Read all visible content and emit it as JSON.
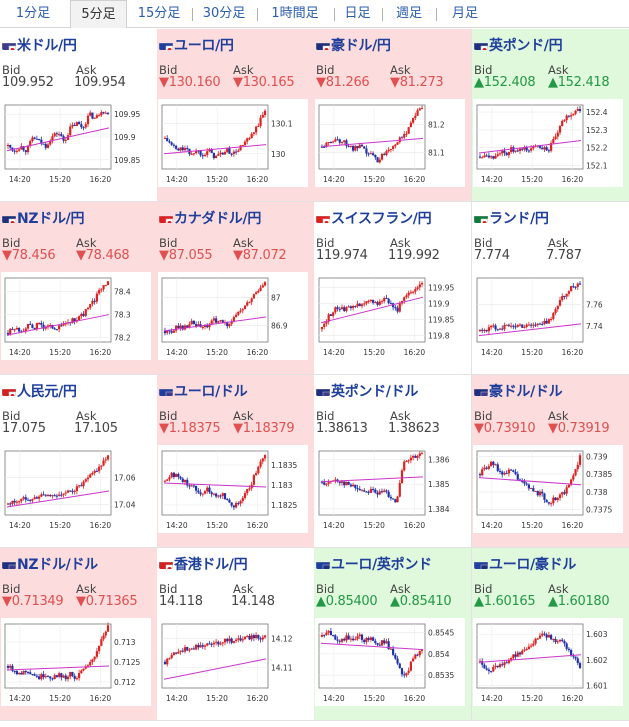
{
  "tabs": [
    {
      "label": "1分足",
      "active": false
    },
    {
      "label": "5分足",
      "active": true
    },
    {
      "label": "15分足",
      "active": false
    },
    {
      "label": "30分足",
      "active": false
    },
    {
      "label": "1時間足",
      "active": false
    },
    {
      "label": "日足",
      "active": false
    },
    {
      "label": "週足",
      "active": false
    },
    {
      "label": "月足",
      "active": false
    }
  ],
  "colors": {
    "down_text": "#e05050",
    "up_text": "#229944",
    "flat_text": "#444444",
    "down_bg": "#fcdcdc",
    "up_bg": "#e0f8dc",
    "candle_up": "#dd2222",
    "candle_down": "#2233aa",
    "moving_average": "#cc33cc",
    "link": "#1e3f9b"
  },
  "x_ticks": [
    "14:20",
    "15:20",
    "16:20"
  ],
  "labels": {
    "bid": "Bid",
    "ask": "Ask"
  },
  "pairs": [
    {
      "name": "米ドル/円",
      "trend": "flat",
      "bid": "109.952",
      "ask": "109.954",
      "flag": "us-jp-flag",
      "chart": {
        "yticks": [
          "109.95",
          "109.9",
          "109.85"
        ],
        "y_range": [
          109.83,
          109.97
        ],
        "ma_start": 109.87,
        "ma_end": 109.92,
        "path": [
          109.88,
          109.87,
          109.88,
          109.87,
          109.9,
          109.89,
          109.88,
          109.9,
          109.91,
          109.89,
          109.92,
          109.93,
          109.92,
          109.95,
          109.94,
          109.96,
          109.95
        ]
      }
    },
    {
      "name": "ユーロ/円",
      "trend": "down",
      "bid": "130.160",
      "ask": "130.165",
      "flag": "eu-jp-flag",
      "chart": {
        "yticks": [
          "130.1",
          "130"
        ],
        "y_range": [
          129.95,
          130.16
        ],
        "ma_start": 130.0,
        "ma_end": 130.03,
        "path": [
          130.05,
          130.03,
          130.01,
          130.02,
          130.0,
          130.01,
          130.0,
          130.01,
          129.99,
          130.0,
          130.01,
          130.0,
          130.02,
          130.04,
          130.06,
          130.1,
          130.14
        ]
      }
    },
    {
      "name": "豪ドル/円",
      "trend": "down",
      "bid": "81.266",
      "ask": "81.273",
      "flag": "au-jp-flag",
      "chart": {
        "yticks": [
          "81.2",
          "81.1"
        ],
        "y_range": [
          81.04,
          81.27
        ],
        "ma_start": 81.12,
        "ma_end": 81.15,
        "path": [
          81.12,
          81.13,
          81.15,
          81.14,
          81.13,
          81.11,
          81.12,
          81.1,
          81.09,
          81.07,
          81.1,
          81.12,
          81.14,
          81.15,
          81.2,
          81.24,
          81.26
        ]
      }
    },
    {
      "name": "英ポンド/円",
      "trend": "up",
      "bid": "152.408",
      "ask": "152.418",
      "flag": "gb-jp-flag",
      "chart": {
        "yticks": [
          "152.4",
          "152.3",
          "152.2",
          "152.1"
        ],
        "y_range": [
          152.08,
          152.44
        ],
        "ma_start": 152.17,
        "ma_end": 152.24,
        "path": [
          152.15,
          152.17,
          152.14,
          152.18,
          152.16,
          152.19,
          152.17,
          152.2,
          152.18,
          152.22,
          152.2,
          152.19,
          152.25,
          152.33,
          152.38,
          152.4,
          152.41
        ]
      }
    },
    {
      "name": "NZドル/円",
      "trend": "down",
      "bid": "78.456",
      "ask": "78.468",
      "flag": "nz-jp-flag",
      "chart": {
        "yticks": [
          "78.4",
          "78.3",
          "78.2"
        ],
        "y_range": [
          78.18,
          78.46
        ],
        "ma_start": 78.21,
        "ma_end": 78.3,
        "path": [
          78.22,
          78.24,
          78.23,
          78.25,
          78.24,
          78.26,
          78.24,
          78.25,
          78.24,
          78.26,
          78.27,
          78.28,
          78.3,
          78.33,
          78.37,
          78.42,
          78.45
        ]
      }
    },
    {
      "name": "カナダドル/円",
      "trend": "down",
      "bid": "87.055",
      "ask": "87.072",
      "flag": "ca-jp-flag",
      "chart": {
        "yticks": [
          "87",
          "86.9"
        ],
        "y_range": [
          86.84,
          87.07
        ],
        "ma_start": 86.88,
        "ma_end": 86.93,
        "path": [
          86.88,
          86.87,
          86.9,
          86.89,
          86.91,
          86.9,
          86.89,
          86.9,
          86.92,
          86.91,
          86.9,
          86.93,
          86.95,
          86.97,
          87.0,
          87.03,
          87.06
        ]
      }
    },
    {
      "name": "スイスフラン/円",
      "trend": "flat",
      "bid": "119.974",
      "ask": "119.992",
      "flag": "ch-jp-flag",
      "chart": {
        "yticks": [
          "119.95",
          "119.9",
          "119.85",
          "119.8"
        ],
        "y_range": [
          119.78,
          119.98
        ],
        "ma_start": 119.84,
        "ma_end": 119.92,
        "path": [
          119.82,
          119.86,
          119.88,
          119.89,
          119.88,
          119.9,
          119.89,
          119.9,
          119.91,
          119.9,
          119.92,
          119.9,
          119.88,
          119.91,
          119.93,
          119.95,
          119.97
        ]
      }
    },
    {
      "name": "ランド/円",
      "trend": "flat",
      "bid": "7.774",
      "ask": "7.787",
      "flag": "za-jp-flag",
      "chart": {
        "yticks": [
          "7.76",
          "7.74"
        ],
        "y_range": [
          7.725,
          7.785
        ],
        "ma_start": 7.731,
        "ma_end": 7.742,
        "path": [
          7.735,
          7.737,
          7.739,
          7.738,
          7.74,
          7.739,
          7.741,
          7.74,
          7.742,
          7.741,
          7.742,
          7.745,
          7.755,
          7.765,
          7.772,
          7.778,
          7.781
        ]
      }
    },
    {
      "name": "人民元/円",
      "trend": "flat",
      "bid": "17.075",
      "ask": "17.105",
      "flag": "cn-jp-flag",
      "chart": {
        "yticks": [
          "17.06",
          "17.04"
        ],
        "y_range": [
          17.032,
          17.08
        ],
        "ma_start": 17.038,
        "ma_end": 17.05,
        "path": [
          17.04,
          17.042,
          17.043,
          17.045,
          17.044,
          17.046,
          17.047,
          17.046,
          17.048,
          17.047,
          17.05,
          17.052,
          17.055,
          17.06,
          17.065,
          17.07,
          17.075
        ]
      }
    },
    {
      "name": "ユーロ/ドル",
      "trend": "down",
      "bid": "1.18375",
      "ask": "1.18379",
      "flag": "eu-us-flag",
      "chart": {
        "yticks": [
          "1.1835",
          "1.183",
          "1.1825"
        ],
        "y_range": [
          1.18225,
          1.18385
        ],
        "ma_start": 1.18305,
        "ma_end": 1.18295,
        "path": [
          1.1831,
          1.1833,
          1.1832,
          1.1831,
          1.183,
          1.1829,
          1.1828,
          1.1829,
          1.1827,
          1.1828,
          1.1826,
          1.1825,
          1.1826,
          1.1828,
          1.1831,
          1.1835,
          1.1837
        ]
      }
    },
    {
      "name": "英ポンド/ドル",
      "trend": "flat",
      "bid": "1.38613",
      "ask": "1.38623",
      "flag": "gb-us-flag",
      "chart": {
        "yticks": [
          "1.386",
          "1.385",
          "1.384"
        ],
        "y_range": [
          1.38375,
          1.38635
        ],
        "ma_start": 1.3851,
        "ma_end": 1.3853,
        "path": [
          1.3851,
          1.385,
          1.3852,
          1.3851,
          1.385,
          1.3849,
          1.3848,
          1.3847,
          1.3848,
          1.3846,
          1.3847,
          1.3845,
          1.3843,
          1.3858,
          1.386,
          1.3861,
          1.3862
        ]
      }
    },
    {
      "name": "豪ドル/ドル",
      "trend": "down",
      "bid": "0.73910",
      "ask": "0.73919",
      "flag": "au-us-flag",
      "chart": {
        "yticks": [
          "0.739",
          "0.7385",
          "0.738",
          "0.7375"
        ],
        "y_range": [
          0.73735,
          0.73915
        ],
        "ma_start": 0.7384,
        "ma_end": 0.7382,
        "path": [
          0.7385,
          0.7387,
          0.7388,
          0.7386,
          0.7385,
          0.7386,
          0.7384,
          0.7382,
          0.7381,
          0.738,
          0.7379,
          0.7377,
          0.7378,
          0.7379,
          0.7381,
          0.7385,
          0.739
        ]
      }
    },
    {
      "name": "NZドル/ドル",
      "trend": "down",
      "bid": "0.71349",
      "ask": "0.71365",
      "flag": "nz-us-flag",
      "chart": {
        "yticks": [
          "0.713",
          "0.7125",
          "0.712"
        ],
        "y_range": [
          0.71185,
          0.71345
        ],
        "ma_start": 0.7123,
        "ma_end": 0.7124,
        "path": [
          0.7124,
          0.7123,
          0.7122,
          0.7123,
          0.7122,
          0.7121,
          0.7122,
          0.7121,
          0.7122,
          0.7121,
          0.7122,
          0.7121,
          0.7123,
          0.7124,
          0.7127,
          0.7131,
          0.7134
        ]
      }
    },
    {
      "name": "香港ドル/円",
      "trend": "flat",
      "bid": "14.118",
      "ask": "14.148",
      "flag": "hk-jp-flag",
      "chart": {
        "yticks": [
          "14.12",
          "14.11"
        ],
        "y_range": [
          14.103,
          14.125
        ],
        "ma_start": 14.106,
        "ma_end": 14.113,
        "path": [
          14.112,
          14.114,
          14.116,
          14.116,
          14.117,
          14.117,
          14.118,
          14.118,
          14.118,
          14.119,
          14.12,
          14.119,
          14.12,
          14.12,
          14.121,
          14.12,
          14.121
        ]
      }
    },
    {
      "name": "ユーロ/英ポンド",
      "trend": "up",
      "bid": "0.85400",
      "ask": "0.85410",
      "flag": "eu-gb-flag",
      "chart": {
        "yticks": [
          "0.8545",
          "0.854",
          "0.8535"
        ],
        "y_range": [
          0.8532,
          0.8547
        ],
        "ma_start": 0.85425,
        "ma_end": 0.8541,
        "path": [
          0.8544,
          0.8545,
          0.8544,
          0.8543,
          0.8544,
          0.8543,
          0.8544,
          0.8543,
          0.8544,
          0.8542,
          0.8543,
          0.8541,
          0.8538,
          0.8534,
          0.8537,
          0.854,
          0.8541
        ]
      }
    },
    {
      "name": "ユーロ/豪ドル",
      "trend": "up",
      "bid": "1.60165",
      "ask": "1.60180",
      "flag": "eu-au-flag",
      "chart": {
        "yticks": [
          "1.603",
          "1.602",
          "1.601"
        ],
        "y_range": [
          1.6009,
          1.6034
        ],
        "ma_start": 1.6019,
        "ma_end": 1.6022,
        "path": [
          1.6019,
          1.6017,
          1.6016,
          1.6018,
          1.6019,
          1.6021,
          1.6022,
          1.6024,
          1.6026,
          1.6028,
          1.6031,
          1.6029,
          1.6028,
          1.6027,
          1.6024,
          1.6021,
          1.6017
        ]
      }
    }
  ]
}
